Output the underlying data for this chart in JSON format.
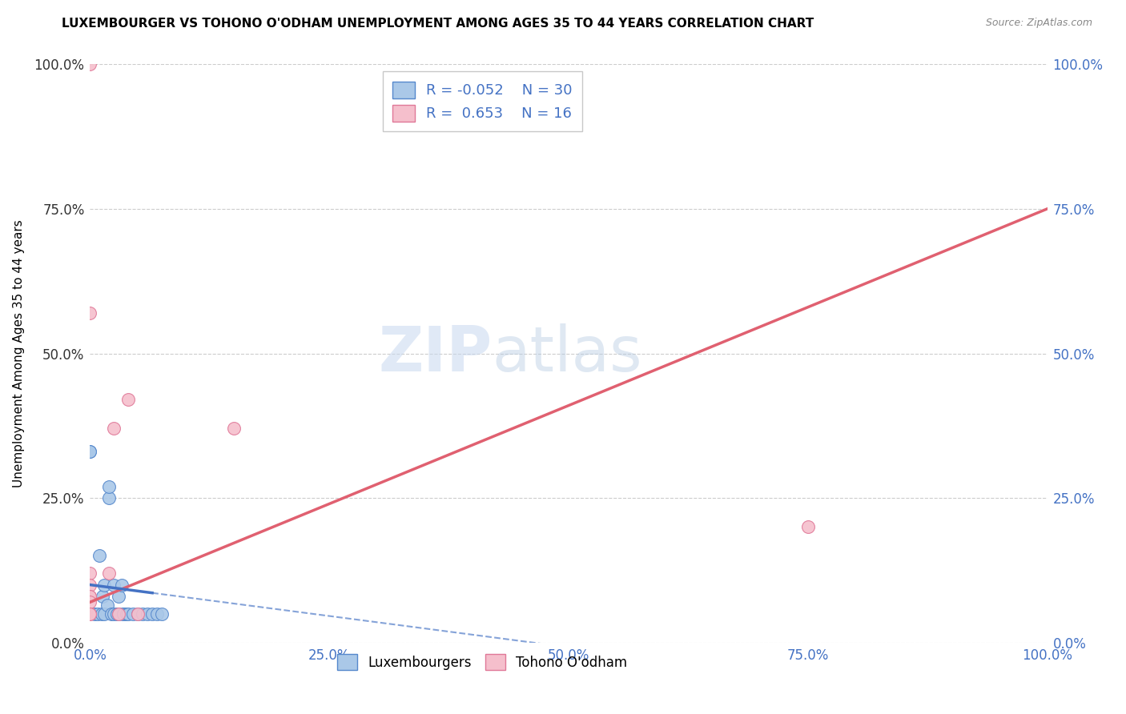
{
  "title": "LUXEMBOURGER VS TOHONO O'ODHAM UNEMPLOYMENT AMONG AGES 35 TO 44 YEARS CORRELATION CHART",
  "source": "Source: ZipAtlas.com",
  "ylabel": "Unemployment Among Ages 35 to 44 years",
  "watermark_zip": "ZIP",
  "watermark_atlas": "atlas",
  "xlim": [
    0.0,
    1.0
  ],
  "ylim": [
    0.0,
    1.0
  ],
  "xticks": [
    0.0,
    0.25,
    0.5,
    0.75,
    1.0
  ],
  "xticklabels": [
    "0.0%",
    "25.0%",
    "50.0%",
    "75.0%",
    "100.0%"
  ],
  "yticks": [
    0.0,
    0.25,
    0.5,
    0.75,
    1.0
  ],
  "ytick_left_labels": [
    "0.0%",
    "25.0%",
    "50.0%",
    "75.0%",
    "100.0%"
  ],
  "ytick_right_labels": [
    "0.0%",
    "25.0%",
    "50.0%",
    "75.0%",
    "100.0%"
  ],
  "lux_color": "#aac8e8",
  "lux_edge_color": "#5588cc",
  "tohono_color": "#f5bfcc",
  "tohono_edge_color": "#e07898",
  "lux_R": -0.052,
  "lux_N": 30,
  "tohono_R": 0.653,
  "tohono_N": 16,
  "trend_lux_color": "#4472C4",
  "trend_tohono_color": "#e06070",
  "tohono_line_x0": 0.0,
  "tohono_line_y0": 0.07,
  "tohono_line_x1": 1.0,
  "tohono_line_y1": 0.75,
  "lux_line_x0": 0.0,
  "lux_line_y0": 0.115,
  "lux_line_solid_x1": 0.065,
  "lux_line_dashed_x1": 0.52,
  "lux_scatter_x": [
    0.0,
    0.0,
    0.005,
    0.008,
    0.01,
    0.012,
    0.013,
    0.015,
    0.015,
    0.018,
    0.02,
    0.02,
    0.022,
    0.025,
    0.025,
    0.028,
    0.03,
    0.03,
    0.033,
    0.035,
    0.035,
    0.038,
    0.04,
    0.045,
    0.05,
    0.055,
    0.06,
    0.065,
    0.07,
    0.075
  ],
  "lux_scatter_y": [
    0.33,
    0.33,
    0.05,
    0.05,
    0.15,
    0.05,
    0.08,
    0.1,
    0.05,
    0.065,
    0.25,
    0.27,
    0.05,
    0.1,
    0.05,
    0.05,
    0.05,
    0.08,
    0.1,
    0.05,
    0.05,
    0.05,
    0.05,
    0.05,
    0.05,
    0.05,
    0.05,
    0.05,
    0.05,
    0.05
  ],
  "tohono_scatter_x": [
    0.0,
    0.0,
    0.0,
    0.0,
    0.0,
    0.0,
    0.0,
    0.02,
    0.025,
    0.03,
    0.04,
    0.05,
    0.15,
    0.75,
    0.0,
    0.0
  ],
  "tohono_scatter_y": [
    0.57,
    0.12,
    0.1,
    0.08,
    0.08,
    0.07,
    0.05,
    0.12,
    0.37,
    0.05,
    0.42,
    0.05,
    0.37,
    0.2,
    1.0,
    0.05
  ],
  "legend_labels": [
    "Luxembourgers",
    "Tohono O'odham"
  ],
  "background_color": "#ffffff",
  "grid_color": "#cccccc",
  "title_fontsize": 11,
  "tick_color_blue": "#4472C4",
  "tick_color_black": "#333333",
  "marker_size": 130,
  "legend_fontsize": 13,
  "ylabel_fontsize": 11
}
